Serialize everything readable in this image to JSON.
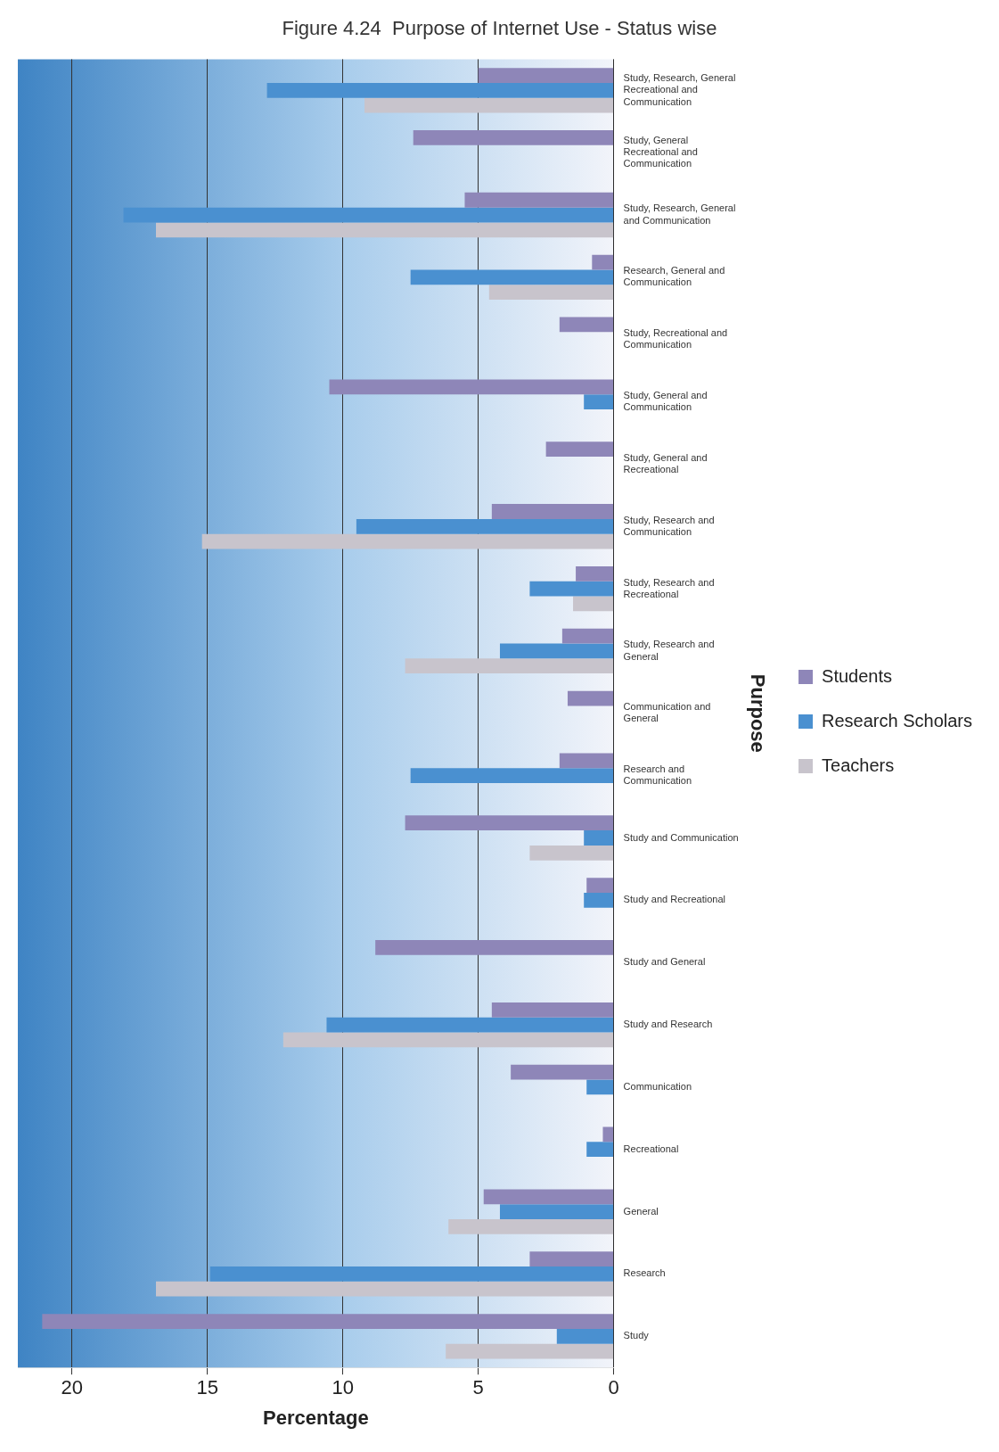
{
  "chart_data": {
    "type": "bar",
    "orientation": "horizontal",
    "title": "Figure 4.24  Purpose of Internet Use - Status wise",
    "xlabel": "Percentage",
    "ylabel": "Purpose",
    "categories": [
      "Study, Research, General Recreational and Communication",
      "Study, General Recreational and Communication",
      "Study, Research, General and Communication",
      "Research, General and Communication",
      "Study, Recreational and Communication",
      "Study, General and Communication",
      "Study, General and Recreational",
      "Study, Research and Communication",
      "Study, Research and Recreational",
      "Study, Research and General",
      "Communication and General",
      "Research and Communication",
      "Study and Communication",
      "Study and Recreational",
      "Study and General",
      "Study and Research",
      "Communication",
      "Recreational",
      "General",
      "Research",
      "Study"
    ],
    "series": [
      {
        "name": "Students",
        "color": "#8e86b8",
        "values": [
          5.0,
          7.4,
          5.5,
          0.8,
          2.0,
          10.5,
          2.5,
          4.5,
          1.4,
          1.9,
          1.7,
          2.0,
          7.7,
          1.0,
          8.8,
          4.5,
          3.8,
          0.4,
          4.8,
          3.1,
          21.1
        ]
      },
      {
        "name": "Research Scholars",
        "color": "#4a90d0",
        "values": [
          12.8,
          null,
          18.1,
          7.5,
          null,
          1.1,
          null,
          9.5,
          3.1,
          4.2,
          null,
          7.5,
          1.1,
          1.1,
          null,
          10.6,
          1.0,
          1.0,
          4.2,
          14.9,
          2.1
        ]
      },
      {
        "name": "Teachers",
        "color": "#c8c4cc",
        "values": [
          9.2,
          null,
          16.9,
          4.6,
          null,
          null,
          null,
          15.2,
          1.5,
          7.7,
          null,
          null,
          3.1,
          null,
          null,
          12.2,
          null,
          null,
          6.1,
          16.9,
          6.2
        ]
      }
    ],
    "xlim": [
      22,
      0
    ],
    "xticks": [
      20,
      15,
      10,
      5,
      0
    ],
    "grid": "x",
    "legend": "right"
  }
}
